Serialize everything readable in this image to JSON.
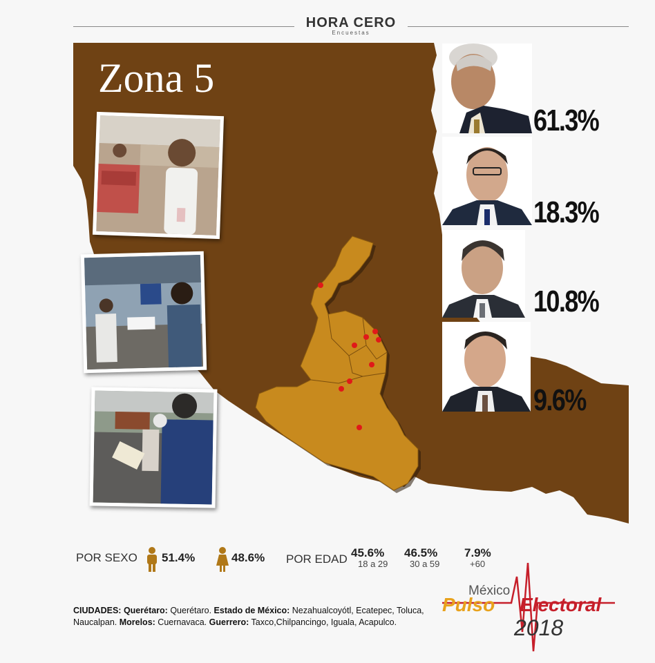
{
  "header": {
    "logo_text": "HORA CERO",
    "logo_sub": "Encuestas"
  },
  "title": "Zona 5",
  "candidates": [
    {
      "pct": "61.3%"
    },
    {
      "pct": "18.3%"
    },
    {
      "pct": "10.8%"
    },
    {
      "pct": "9.6%"
    }
  ],
  "stats": {
    "sex_label": "POR SEXO",
    "male_pct": "51.4%",
    "female_pct": "48.6%",
    "age_label": "POR EDAD",
    "ages": [
      {
        "pct": "45.6%",
        "range": "18 a 29"
      },
      {
        "pct": "46.5%",
        "range": "30 a 59"
      },
      {
        "pct": "7.9%",
        "range": "+60"
      }
    ]
  },
  "cities": {
    "heading": "CIUDADES:",
    "s1_state": "Querétaro:",
    "s1_cities": " Querétaro. ",
    "s2_state": "Estado de México:",
    "s2_cities": " Nezahualcoyótl, Ecatepec, Toluca, Naucalpan. ",
    "s3_state": "Morelos:",
    "s3_cities": " Cuernavaca. ",
    "s4_state": "Guerrero:",
    "s4_cities": " Taxco,Chilpancingo, Iguala, Acapulco."
  },
  "brand": {
    "mexico": "México",
    "pulso": "Pulso",
    "electoral": "Electoral",
    "year": "2018"
  },
  "colors": {
    "map_brown": "#6f4214",
    "region_gold": "#c88a1e",
    "dot_red": "#e01919",
    "brand_orange": "#e8a21c",
    "brand_red": "#c61f2a"
  }
}
